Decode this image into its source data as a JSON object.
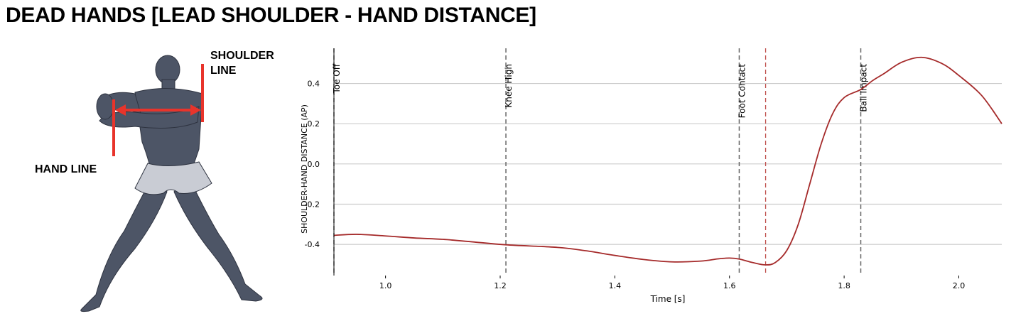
{
  "page": {
    "title": "DEAD HANDS [LEAD SHOULDER - HAND DISTANCE]"
  },
  "figure": {
    "shoulder_label_line1": "SHOULDER",
    "shoulder_label_line2": "LINE",
    "hand_label": "HAND LINE",
    "marker_color": "#e8342b",
    "body_color": "#4d5566"
  },
  "chart_data": {
    "type": "line",
    "title": "",
    "xlabel": "Time [s]",
    "ylabel": "SHOULDER-HAND DISTANCE (AP)",
    "xlim": [
      0.91,
      2.075
    ],
    "ylim": [
      -0.555,
      0.575
    ],
    "x_ticks": [
      1.0,
      1.2,
      1.4,
      1.6,
      1.8,
      2.0
    ],
    "x_tick_labels": [
      "1.0",
      "1.2",
      "1.4",
      "1.6",
      "1.8",
      "2.0"
    ],
    "y_ticks": [
      0.4,
      0.2,
      0.0,
      -0.2,
      -0.4
    ],
    "y_tick_labels": [
      "0.4",
      "0.2",
      "0.0",
      "-0.2",
      "-0.4"
    ],
    "grid": "horizontal",
    "line_color": "#a52a2a",
    "events": [
      {
        "label": "Toe Off",
        "x": 0.91
      },
      {
        "label": "Knee High",
        "x": 1.21
      },
      {
        "label": "Foot Contact",
        "x": 1.617
      },
      {
        "label": "Ball Impact",
        "x": 1.829
      }
    ],
    "marker_line": {
      "x": 1.663,
      "color": "#c0504d"
    },
    "series": [
      {
        "x": [
          0.91,
          0.95,
          1.0,
          1.05,
          1.1,
          1.15,
          1.21,
          1.3,
          1.35,
          1.4,
          1.45,
          1.5,
          1.55,
          1.58,
          1.6,
          1.617,
          1.64,
          1.663,
          1.68,
          1.7,
          1.72,
          1.74,
          1.76,
          1.78,
          1.8,
          1.829,
          1.85,
          1.87,
          1.9,
          1.935,
          1.97,
          2.0,
          2.04,
          2.075
        ],
        "y": [
          -0.355,
          -0.35,
          -0.358,
          -0.368,
          -0.375,
          -0.387,
          -0.402,
          -0.415,
          -0.432,
          -0.455,
          -0.475,
          -0.487,
          -0.483,
          -0.472,
          -0.468,
          -0.473,
          -0.49,
          -0.502,
          -0.49,
          -0.43,
          -0.3,
          -0.1,
          0.1,
          0.25,
          0.33,
          0.37,
          0.415,
          0.45,
          0.505,
          0.53,
          0.5,
          0.44,
          0.34,
          0.2
        ]
      }
    ]
  }
}
